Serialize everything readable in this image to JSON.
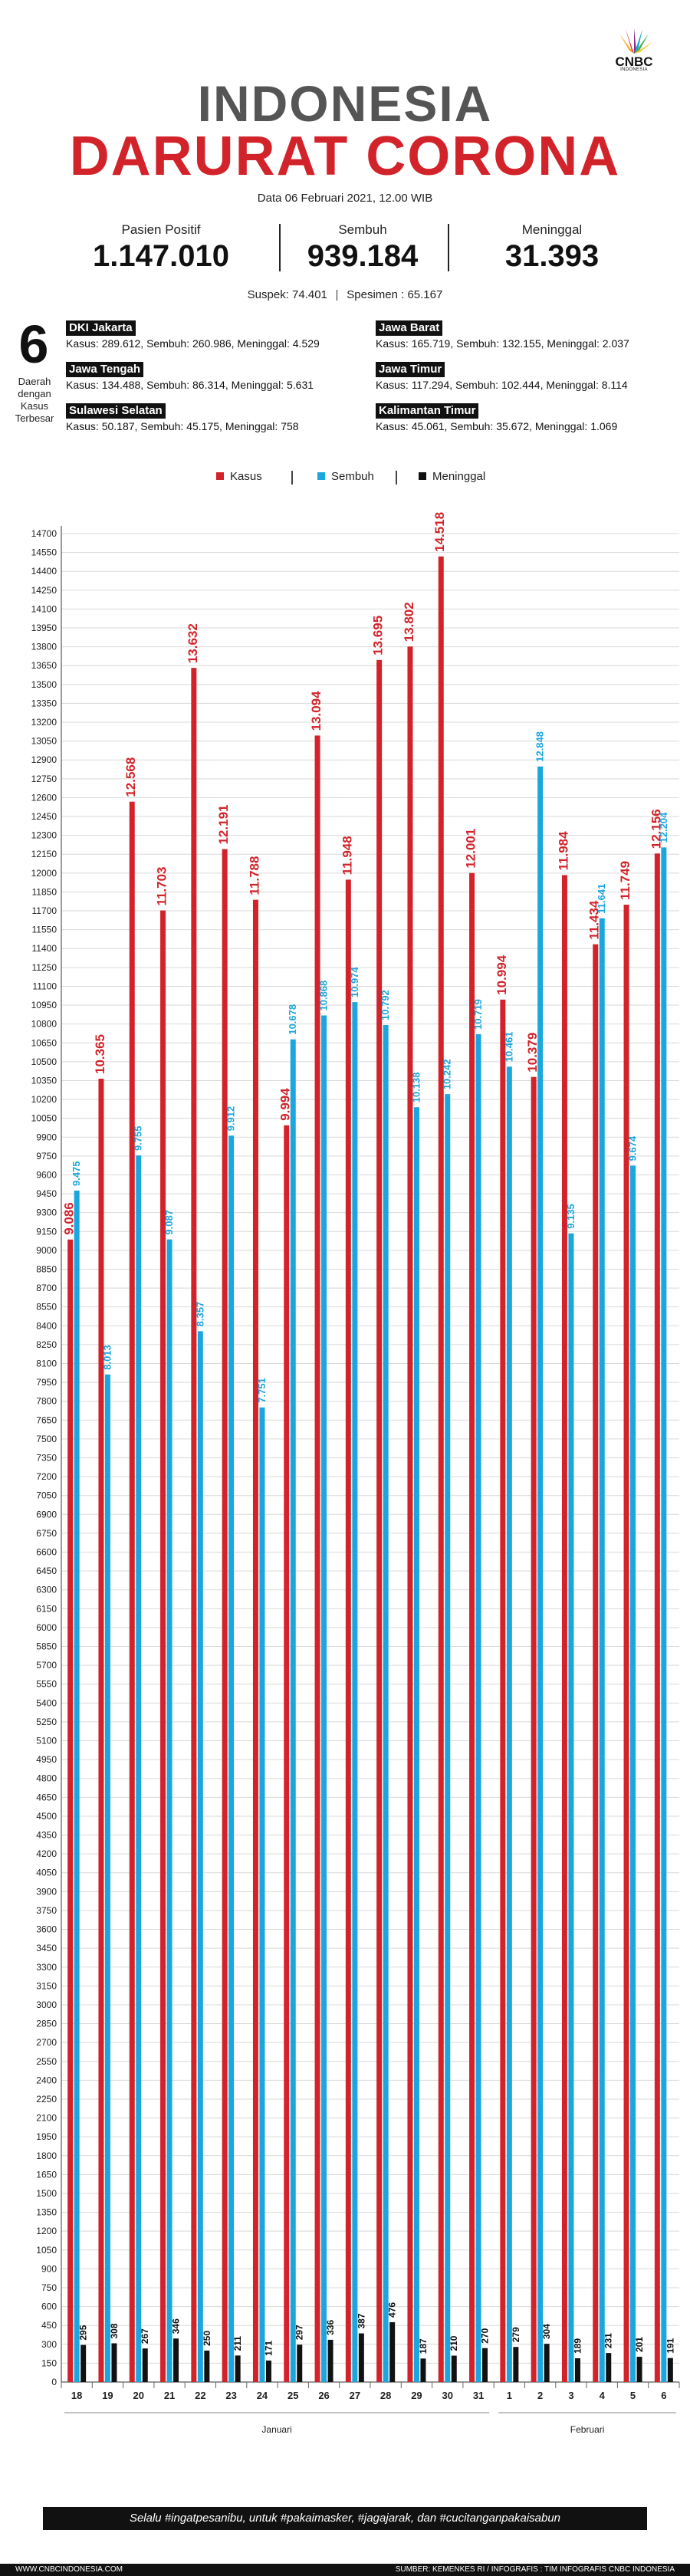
{
  "header": {
    "logo_text": "CNBC",
    "logo_sub": "INDONESIA",
    "title_line1": "INDONESIA",
    "title_line2": "DARURAT CORONA",
    "date": "Data 06 Februari 2021, 12.00 WIB"
  },
  "stats": {
    "positif": {
      "label": "Pasien Positif",
      "value": "1.147.010"
    },
    "sembuh": {
      "label": "Sembuh",
      "value": "939.184"
    },
    "meninggal": {
      "label": "Meninggal",
      "value": "31.393"
    },
    "suspek": "Suspek: 74.401",
    "spesimen": "Spesimen : 65.167"
  },
  "regions": {
    "count": "6",
    "caption": "Daerah dengan Kasus Terbesar",
    "items": [
      {
        "name": "DKI Jakarta",
        "detail": "Kasus: 289.612, Sembuh: 260.986, Meninggal: 4.529"
      },
      {
        "name": "Jawa Barat",
        "detail": "Kasus: 165.719, Sembuh: 132.155, Meninggal: 2.037"
      },
      {
        "name": "Jawa Tengah",
        "detail": "Kasus: 134.488, Sembuh: 86.314, Meninggal: 5.631"
      },
      {
        "name": "Jawa Timur",
        "detail": "Kasus: 117.294, Sembuh: 102.444, Meninggal: 8.114"
      },
      {
        "name": "Sulawesi Selatan",
        "detail": "Kasus: 50.187, Sembuh: 45.175, Meninggal: 758"
      },
      {
        "name": "Kalimantan Timur",
        "detail": "Kasus: 45.061, Sembuh: 35.672, Meninggal: 1.069"
      }
    ]
  },
  "colors": {
    "kasus": "#d2232a",
    "sembuh": "#1ba6de",
    "meninggal": "#111111",
    "title_gray": "#555555"
  },
  "chart_data": {
    "type": "bar",
    "categories": [
      "18",
      "19",
      "20",
      "21",
      "22",
      "23",
      "24",
      "25",
      "26",
      "27",
      "28",
      "29",
      "30",
      "31",
      "1",
      "2",
      "3",
      "4",
      "5",
      "6"
    ],
    "month_labels": [
      "Januari",
      "Februari"
    ],
    "series": [
      {
        "name": "Kasus",
        "values": [
          9086,
          10365,
          12568,
          11703,
          13632,
          12191,
          11788,
          9994,
          13094,
          11948,
          13695,
          13802,
          14518,
          12001,
          10994,
          10379,
          11984,
          11434,
          11749,
          12156
        ],
        "labels": [
          "9.086",
          "10.365",
          "12.568",
          "11.703",
          "13.632",
          "12.191",
          "11.788",
          "9.994",
          "13.094",
          "11.948",
          "13.695",
          "13.802",
          "14.518",
          "12.001",
          "10.994",
          "10.379",
          "11.984",
          "11.434",
          "11.749",
          "12.156"
        ]
      },
      {
        "name": "Sembuh",
        "values": [
          9475,
          8013,
          9755,
          9087,
          8357,
          9912,
          7751,
          10678,
          10868,
          10974,
          10792,
          10138,
          10242,
          10719,
          10461,
          12848,
          9135,
          11641,
          9674,
          12204
        ],
        "labels": [
          "9.475",
          "8.013",
          "9.755",
          "9.087",
          "8.357",
          "9.912",
          "7.751",
          "10.678",
          "10.868",
          "10.974",
          "10.792",
          "10.138",
          "10.242",
          "10.719",
          "10.461",
          "12.848",
          "9.135",
          "11.641",
          "9.674",
          "12.204"
        ]
      },
      {
        "name": "Meninggal",
        "values": [
          295,
          308,
          267,
          346,
          250,
          211,
          171,
          297,
          336,
          387,
          476,
          187,
          210,
          270,
          279,
          304,
          189,
          231,
          201,
          191
        ],
        "labels": [
          "295",
          "308",
          "267",
          "346",
          "250",
          "211",
          "171",
          "297",
          "336",
          "387",
          "476",
          "187",
          "210",
          "270",
          "279",
          "304",
          "189",
          "231",
          "201",
          "191"
        ]
      }
    ],
    "ylim": [
      0,
      14700
    ],
    "ytick_step": 150,
    "grid": true,
    "legend": [
      "Kasus",
      "Sembuh",
      "Meninggal"
    ],
    "legend_placement": "top-center"
  },
  "footer": {
    "slogan": "Selalu #ingatpesanibu, untuk #pakaimasker, #jagajarak, dan #cucitanganpakaisabun",
    "site": "WWW.CNBCINDONESIA.COM",
    "source": "SUMBER: KEMENKES RI / INFOGRAFIS : TIM INFOGRAFIS CNBC INDONESIA"
  }
}
